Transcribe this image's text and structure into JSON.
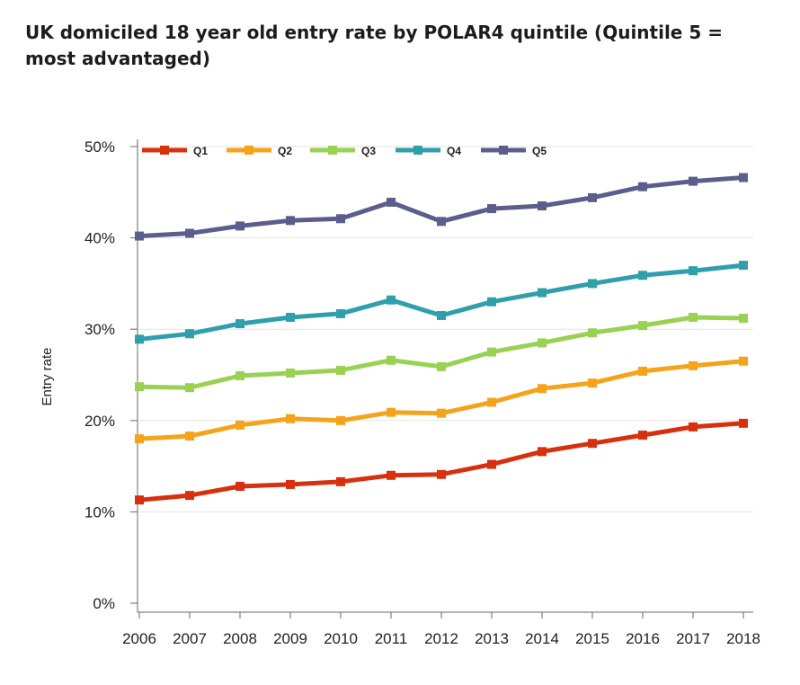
{
  "title": "UK domiciled 18 year old entry rate by POLAR4 quintile (Quintile 5 = most advantaged)",
  "chart_data": {
    "type": "line",
    "title": "UK domiciled 18 year old entry rate by POLAR4 quintile (Quintile 5 = most advantaged)",
    "xlabel": "",
    "ylabel": "Entry rate",
    "x": [
      "2006",
      "2007",
      "2008",
      "2009",
      "2010",
      "2011",
      "2012",
      "2013",
      "2014",
      "2015",
      "2016",
      "2017",
      "2018"
    ],
    "ylim": [
      0,
      50
    ],
    "yticks": [
      0,
      10,
      20,
      30,
      40,
      50
    ],
    "ytick_labels": [
      "0%",
      "10%",
      "20%",
      "30%",
      "40%",
      "50%"
    ],
    "grid": true,
    "legend_position": "top",
    "series": [
      {
        "name": "Q1",
        "color": "#d7300e",
        "values": [
          11.3,
          11.8,
          12.8,
          13.0,
          13.3,
          14.0,
          14.1,
          15.2,
          16.6,
          17.5,
          18.4,
          19.3,
          19.7
        ]
      },
      {
        "name": "Q2",
        "color": "#f5a31a",
        "values": [
          18.0,
          18.3,
          19.5,
          20.2,
          20.0,
          20.9,
          20.8,
          22.0,
          23.5,
          24.1,
          25.4,
          26.0,
          26.5
        ]
      },
      {
        "name": "Q3",
        "color": "#99d153",
        "values": [
          23.7,
          23.6,
          24.9,
          25.2,
          25.5,
          26.6,
          25.9,
          27.5,
          28.5,
          29.6,
          30.4,
          31.3,
          31.2
        ]
      },
      {
        "name": "Q4",
        "color": "#2f9fab",
        "values": [
          28.9,
          29.5,
          30.6,
          31.3,
          31.7,
          33.2,
          31.5,
          33.0,
          34.0,
          35.0,
          35.9,
          36.4,
          37.0
        ]
      },
      {
        "name": "Q5",
        "color": "#5b5e8c",
        "values": [
          40.2,
          40.5,
          41.3,
          41.9,
          42.1,
          43.9,
          41.8,
          43.2,
          43.5,
          44.4,
          45.6,
          46.2,
          46.6
        ]
      }
    ]
  }
}
